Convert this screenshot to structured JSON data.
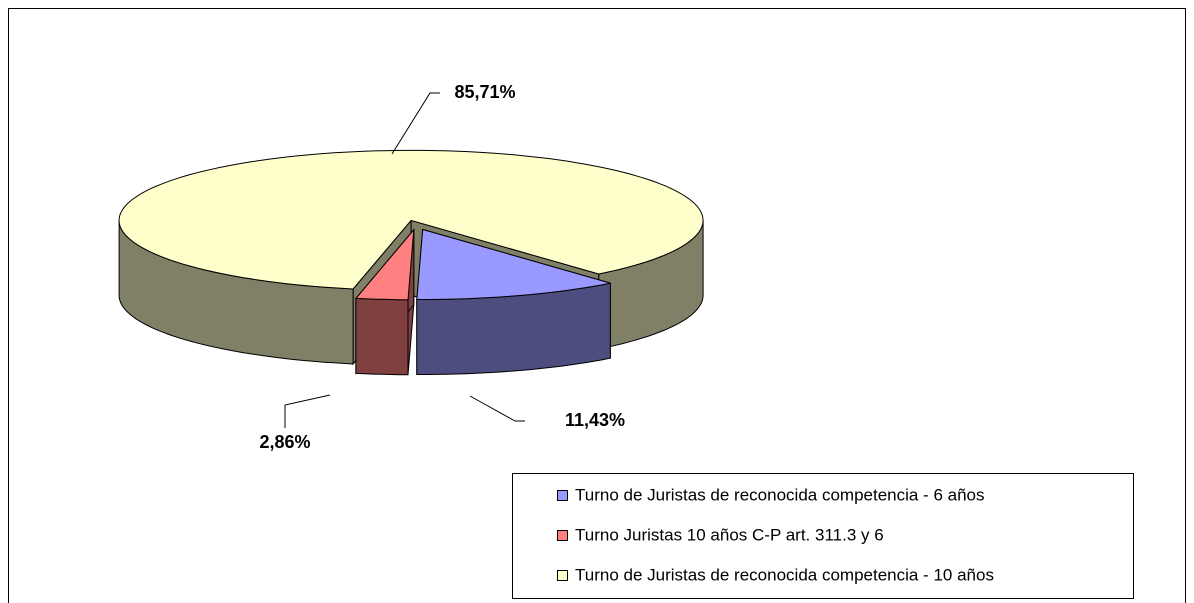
{
  "chart_data": {
    "type": "pie",
    "categories": [
      "Turno de Juristas de reconocida competencia - 6 años",
      "Turno Juristas 10 años C-P art. 311.3 y 6",
      "Turno de Juristas de reconocida competencia - 10 años"
    ],
    "values": [
      11.43,
      2.86,
      85.71
    ],
    "value_labels": [
      "11,43%",
      "2,86%",
      "85,71%"
    ],
    "colors": [
      "#9999ff",
      "#ff8080",
      "#ffffcc"
    ],
    "legend": "bottom-right"
  }
}
